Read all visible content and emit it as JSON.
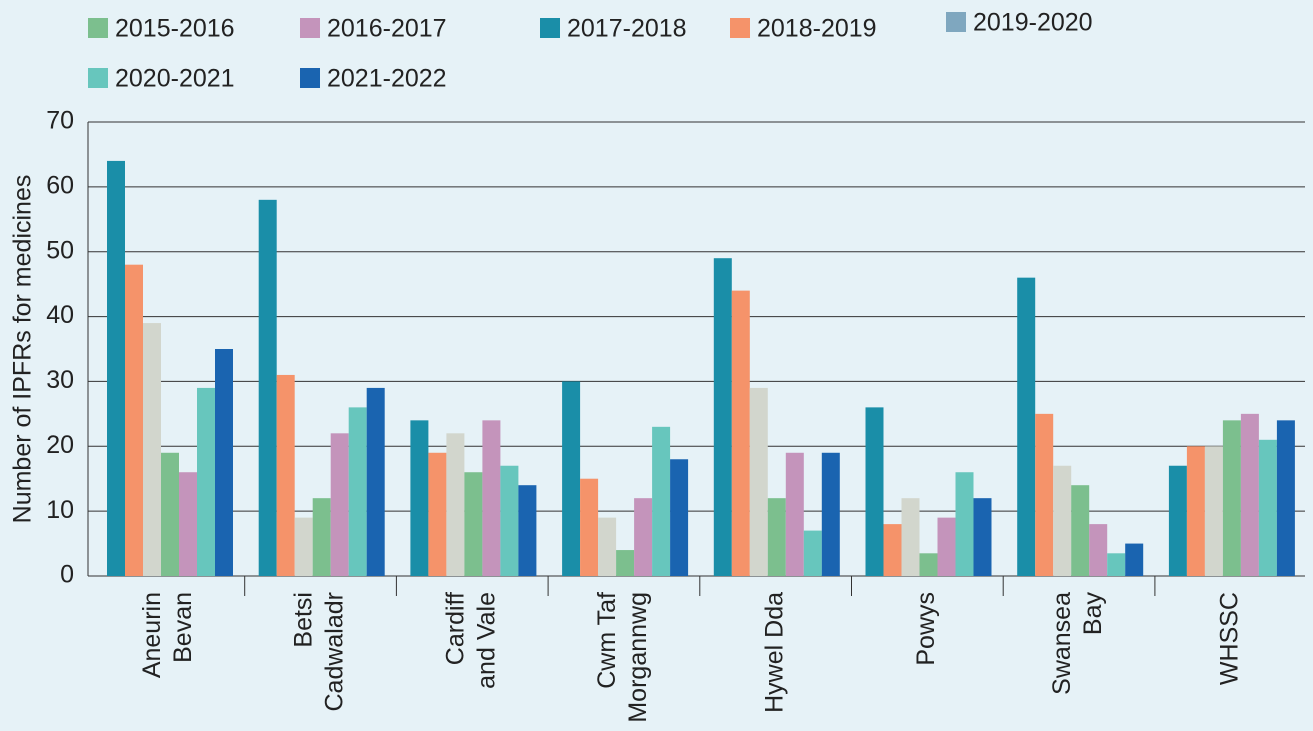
{
  "chart_data": {
    "type": "bar",
    "y_label": "Number of IPFRs for medicines",
    "categories": [
      [
        "Aneurin",
        "Bevan"
      ],
      [
        "Betsi",
        "Cadwaladr"
      ],
      [
        "Cardiff",
        "and Vale"
      ],
      [
        "Cwm Taf",
        "Morgannwg"
      ],
      [
        "Hywel Dda"
      ],
      [
        "Powys"
      ],
      [
        "Swansea",
        "Bay"
      ],
      [
        "WHSSC"
      ]
    ],
    "series": [
      {
        "name": "2015-2016",
        "color": "#7cbf8e",
        "values": [
          19,
          12,
          16,
          4,
          12,
          3.5,
          14,
          24
        ]
      },
      {
        "name": "2016-2017",
        "color": "#c494bb",
        "values": [
          16,
          22,
          24,
          12,
          19,
          9,
          8,
          25
        ]
      },
      {
        "name": "2017-2018",
        "color": "#1a8ea8",
        "values": [
          64,
          58,
          24,
          30,
          49,
          26,
          46,
          17
        ]
      },
      {
        "name": "2018-2019",
        "color": "#f5936a",
        "values": [
          48,
          31,
          19,
          15,
          44,
          8,
          25,
          20
        ]
      },
      {
        "name": "2019-2020",
        "color": "#d2d6cd",
        "legend_color": "#7fa7bf",
        "values": [
          39,
          9,
          22,
          9,
          29,
          12,
          17,
          20
        ]
      },
      {
        "name": "2020-2021",
        "color": "#67c6bd",
        "values": [
          29,
          26,
          17,
          23,
          7,
          16,
          3.5,
          21
        ]
      },
      {
        "name": "2021-2022",
        "color": "#1a64b0",
        "values": [
          35,
          29,
          14,
          18,
          19,
          12,
          5,
          24
        ]
      }
    ],
    "ylim": [
      0,
      70
    ],
    "yticks": [
      0,
      10,
      20,
      30,
      40,
      50,
      60,
      70
    ],
    "grid": true
  }
}
